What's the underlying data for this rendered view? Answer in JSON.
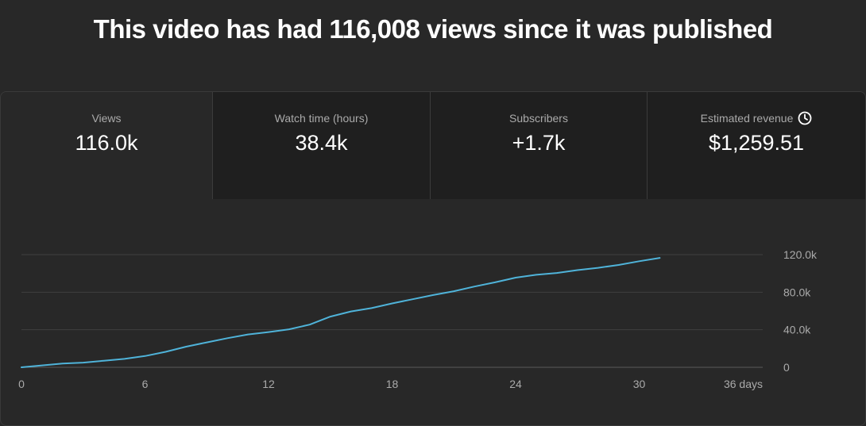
{
  "headline": "This video has had 116,008 views since it was published",
  "metrics": [
    {
      "label": "Views",
      "value": "116.0k",
      "active": true
    },
    {
      "label": "Watch time (hours)",
      "value": "38.4k",
      "active": false
    },
    {
      "label": "Subscribers",
      "value": "+1.7k",
      "active": false
    },
    {
      "label": "Estimated revenue",
      "value": "$1,259.51",
      "active": false,
      "icon": "clock-icon"
    }
  ],
  "colors": {
    "line": "#4fb3d9",
    "grid": "#3f3f3f",
    "axis_text": "#aaaaaa"
  },
  "chart_data": {
    "type": "line",
    "x_tick_labels": [
      "0",
      "6",
      "12",
      "18",
      "24",
      "30",
      "36 days"
    ],
    "x_ticks": [
      0,
      6,
      12,
      18,
      24,
      30,
      36
    ],
    "y_tick_labels": [
      "0",
      "40.0k",
      "80.0k",
      "120.0k"
    ],
    "y_ticks": [
      0,
      40000,
      80000,
      120000
    ],
    "xlim": [
      0,
      36
    ],
    "ylim": [
      0,
      120000
    ],
    "grid": true,
    "series": [
      {
        "x": [
          0,
          1,
          2,
          3,
          4,
          5,
          6,
          7,
          8,
          9,
          10,
          11,
          12,
          13,
          14,
          15,
          16,
          17,
          18,
          19,
          20,
          21,
          22,
          23,
          24,
          25,
          26,
          27,
          28,
          29,
          30,
          31
        ],
        "y": [
          0,
          2000,
          4000,
          5000,
          7000,
          9000,
          12000,
          16500,
          22000,
          26500,
          31000,
          35000,
          37500,
          40500,
          45500,
          54000,
          59500,
          63000,
          68000,
          72500,
          77000,
          81000,
          86000,
          90500,
          95500,
          98500,
          100500,
          103500,
          106000,
          109000,
          113000,
          116500
        ]
      }
    ]
  }
}
